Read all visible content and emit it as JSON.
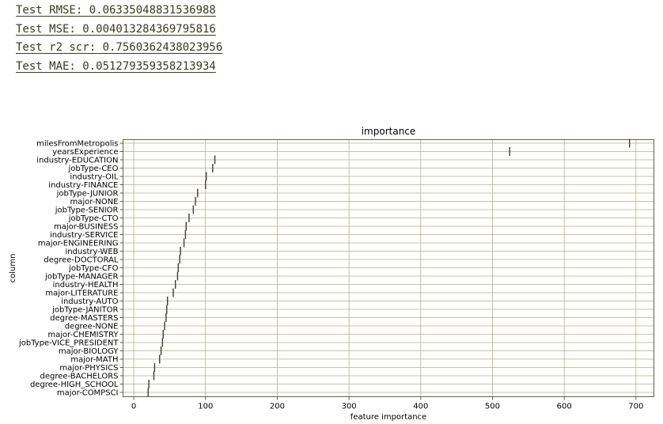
{
  "metrics": [
    {
      "label": "Test RMSE: 0.06335048831536988"
    },
    {
      "label": "Test MSE: 0.004013284369795816"
    },
    {
      "label": "Test r2_scr: 0.7560362438023956"
    },
    {
      "label": "Test MAE: 0.051279359358213934"
    }
  ],
  "colors": {
    "grid": "#b5b08a",
    "marker": "#3d3d2a",
    "metric_text": "#3a3a22"
  },
  "chart_data": {
    "type": "scatter",
    "title": "importance",
    "xlabel": "feature importance",
    "ylabel": "column",
    "xlim": [
      -15,
      725
    ],
    "xticks": [
      0,
      100,
      200,
      300,
      400,
      500,
      600,
      700
    ],
    "grid": true,
    "marker": "vertical-line",
    "categories": [
      "milesFromMetropolis",
      "yearsExperience",
      "industry-EDUCATION",
      "jobType-CEO",
      "industry-OIL",
      "industry-FINANCE",
      "jobType-JUNIOR",
      "major-NONE",
      "jobType-SENIOR",
      "jobType-CTO",
      "major-BUSINESS",
      "industry-SERVICE",
      "major-ENGINEERING",
      "industry-WEB",
      "degree-DOCTORAL",
      "jobType-CFO",
      "jobType-MANAGER",
      "industry-HEALTH",
      "major-LITERATURE",
      "industry-AUTO",
      "jobType-JANITOR",
      "degree-MASTERS",
      "degree-NONE",
      "major-CHEMISTRY",
      "jobType-VICE_PRESIDENT",
      "major-BIOLOGY",
      "major-MATH",
      "major-PHYSICS",
      "degree-BACHELORS",
      "degree-HIGH_SCHOOL",
      "major-COMPSCI"
    ],
    "values": [
      691,
      524,
      113,
      110,
      101,
      100,
      89,
      86,
      83,
      77,
      73,
      72,
      70,
      65,
      64,
      62,
      61,
      58,
      55,
      47,
      46,
      45,
      43,
      41,
      40,
      38,
      36,
      29,
      28,
      21,
      20
    ]
  }
}
